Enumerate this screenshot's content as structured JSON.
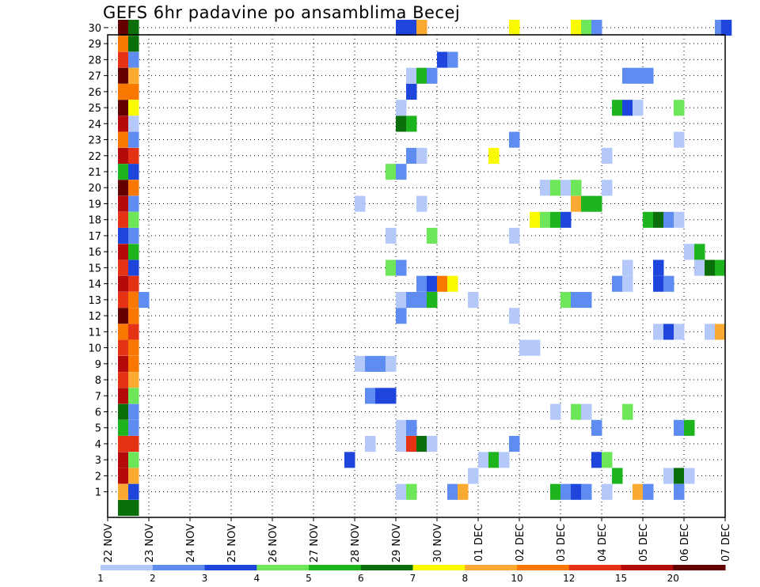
{
  "chart_data": {
    "type": "heatmap",
    "title": "GEFS 6hr padavine po ansamblima Becej",
    "x_tick_labels": [
      "22 NOV",
      "23 NOV",
      "24 NOV",
      "25 NOV",
      "26 NOV",
      "27 NOV",
      "28 NOV",
      "29 NOV",
      "30 NOV",
      "01 DEC",
      "02 DEC",
      "03 DEC",
      "04 DEC",
      "05 DEC",
      "06 DEC",
      "07 DEC"
    ],
    "y_tick_labels": [
      "1",
      "2",
      "3",
      "4",
      "5",
      "6",
      "7",
      "8",
      "9",
      "10",
      "11",
      "12",
      "13",
      "14",
      "15",
      "16",
      "17",
      "18",
      "19",
      "20",
      "21",
      "22",
      "23",
      "24",
      "25",
      "26",
      "27",
      "28",
      "29",
      "30"
    ],
    "x_range_days": [
      0,
      15
    ],
    "y_range": [
      0,
      30
    ],
    "grid": "dotted",
    "colorbar": {
      "labels": [
        "1",
        "2",
        "3",
        "4",
        "5",
        "6",
        "7",
        "8",
        "10",
        "12",
        "15",
        "20"
      ],
      "colors": [
        "#b4c8fa",
        "#5f8cf0",
        "#1e46dc",
        "#6ee65a",
        "#1eb41e",
        "#0a6e0a",
        "#fafa00",
        "#faaa32",
        "#fa7800",
        "#e63214",
        "#b40a0a",
        "#640000"
      ]
    },
    "cells_day_member_class": [
      [
        0.25,
        30,
        11
      ],
      [
        0.25,
        29,
        8
      ],
      [
        0.25,
        28,
        9
      ],
      [
        0.25,
        27,
        11
      ],
      [
        0.25,
        26,
        8
      ],
      [
        0.25,
        25,
        11
      ],
      [
        0.25,
        24,
        10
      ],
      [
        0.25,
        23,
        8
      ],
      [
        0.25,
        22,
        10
      ],
      [
        0.25,
        21,
        4
      ],
      [
        0.25,
        20,
        11
      ],
      [
        0.25,
        19,
        10
      ],
      [
        0.25,
        18,
        9
      ],
      [
        0.25,
        17,
        2
      ],
      [
        0.25,
        16,
        10
      ],
      [
        0.25,
        15,
        9
      ],
      [
        0.25,
        14,
        10
      ],
      [
        0.25,
        13,
        9
      ],
      [
        0.25,
        12,
        11
      ],
      [
        0.25,
        11,
        8
      ],
      [
        0.25,
        10,
        9
      ],
      [
        0.25,
        9,
        10
      ],
      [
        0.25,
        8,
        9
      ],
      [
        0.25,
        7,
        10
      ],
      [
        0.25,
        6,
        5
      ],
      [
        0.25,
        5,
        4
      ],
      [
        0.25,
        4,
        9
      ],
      [
        0.25,
        3,
        10
      ],
      [
        0.25,
        2,
        10
      ],
      [
        0.25,
        1,
        7
      ],
      [
        0.25,
        0,
        5
      ],
      [
        0.5,
        30,
        5
      ],
      [
        0.5,
        29,
        5
      ],
      [
        0.5,
        28,
        1
      ],
      [
        0.5,
        27,
        7
      ],
      [
        0.5,
        26,
        8
      ],
      [
        0.5,
        25,
        6
      ],
      [
        0.5,
        24,
        0
      ],
      [
        0.5,
        23,
        1
      ],
      [
        0.5,
        22,
        9
      ],
      [
        0.5,
        21,
        2
      ],
      [
        0.5,
        20,
        8
      ],
      [
        0.5,
        19,
        1
      ],
      [
        0.5,
        18,
        3
      ],
      [
        0.5,
        17,
        1
      ],
      [
        0.5,
        16,
        4
      ],
      [
        0.5,
        15,
        2
      ],
      [
        0.5,
        14,
        9
      ],
      [
        0.5,
        13,
        8
      ],
      [
        0.5,
        12,
        8
      ],
      [
        0.5,
        11,
        9
      ],
      [
        0.5,
        10,
        8
      ],
      [
        0.5,
        9,
        8
      ],
      [
        0.5,
        8,
        7
      ],
      [
        0.5,
        7,
        3
      ],
      [
        0.5,
        6,
        1
      ],
      [
        0.5,
        5,
        1
      ],
      [
        0.5,
        4,
        9
      ],
      [
        0.5,
        3,
        3
      ],
      [
        0.5,
        2,
        7
      ],
      [
        0.5,
        1,
        2
      ],
      [
        0.5,
        0,
        5
      ],
      [
        0.75,
        13,
        1
      ],
      [
        7.0,
        30,
        2
      ],
      [
        7.25,
        30,
        2
      ],
      [
        7.5,
        30,
        7
      ],
      [
        9.75,
        30,
        6
      ],
      [
        11.25,
        30,
        6
      ],
      [
        11.5,
        30,
        3
      ],
      [
        11.75,
        30,
        1
      ],
      [
        14.75,
        30,
        1
      ],
      [
        14.9,
        30,
        2
      ],
      [
        8.0,
        28,
        2
      ],
      [
        8.25,
        28,
        1
      ],
      [
        7.25,
        27,
        0
      ],
      [
        7.5,
        27,
        4
      ],
      [
        7.75,
        27,
        1
      ],
      [
        12.5,
        27,
        1
      ],
      [
        12.75,
        27,
        1
      ],
      [
        13.0,
        27,
        1
      ],
      [
        7.25,
        26,
        2
      ],
      [
        7.0,
        25,
        0
      ],
      [
        12.25,
        25,
        4
      ],
      [
        12.5,
        25,
        2
      ],
      [
        12.75,
        25,
        0
      ],
      [
        13.75,
        25,
        3
      ],
      [
        7.0,
        24,
        5
      ],
      [
        7.25,
        24,
        4
      ],
      [
        9.75,
        23,
        1
      ],
      [
        13.75,
        23,
        0
      ],
      [
        7.25,
        22,
        1
      ],
      [
        7.5,
        22,
        0
      ],
      [
        9.25,
        22,
        6
      ],
      [
        12.0,
        22,
        0
      ],
      [
        6.75,
        21,
        3
      ],
      [
        7.0,
        21,
        1
      ],
      [
        10.5,
        20,
        0
      ],
      [
        10.75,
        20,
        3
      ],
      [
        11.0,
        20,
        0
      ],
      [
        11.25,
        20,
        3
      ],
      [
        12.0,
        20,
        0
      ],
      [
        6.0,
        19,
        0
      ],
      [
        7.5,
        19,
        0
      ],
      [
        11.25,
        19,
        7
      ],
      [
        11.5,
        19,
        4
      ],
      [
        11.75,
        19,
        4
      ],
      [
        10.25,
        18,
        6
      ],
      [
        10.5,
        18,
        3
      ],
      [
        10.75,
        18,
        4
      ],
      [
        11.0,
        18,
        2
      ],
      [
        13.0,
        18,
        4
      ],
      [
        13.25,
        18,
        5
      ],
      [
        13.5,
        18,
        1
      ],
      [
        13.75,
        18,
        0
      ],
      [
        6.75,
        17,
        0
      ],
      [
        7.75,
        17,
        3
      ],
      [
        9.75,
        17,
        0
      ],
      [
        14.0,
        16,
        0
      ],
      [
        14.25,
        16,
        4
      ],
      [
        6.75,
        15,
        3
      ],
      [
        7.0,
        15,
        1
      ],
      [
        12.5,
        15,
        0
      ],
      [
        13.25,
        15,
        2
      ],
      [
        14.25,
        15,
        0
      ],
      [
        14.5,
        15,
        5
      ],
      [
        14.75,
        15,
        4
      ],
      [
        7.5,
        14,
        1
      ],
      [
        7.75,
        14,
        2
      ],
      [
        8.0,
        14,
        8
      ],
      [
        8.25,
        14,
        6
      ],
      [
        12.25,
        14,
        1
      ],
      [
        12.5,
        14,
        0
      ],
      [
        13.25,
        14,
        2
      ],
      [
        13.5,
        14,
        1
      ],
      [
        7.0,
        13,
        0
      ],
      [
        7.25,
        13,
        1
      ],
      [
        7.5,
        13,
        1
      ],
      [
        7.75,
        13,
        4
      ],
      [
        8.75,
        13,
        0
      ],
      [
        11.0,
        13,
        3
      ],
      [
        11.25,
        13,
        1
      ],
      [
        11.5,
        13,
        1
      ],
      [
        7.0,
        12,
        1
      ],
      [
        9.75,
        12,
        0
      ],
      [
        13.25,
        11,
        0
      ],
      [
        13.5,
        11,
        2
      ],
      [
        13.75,
        11,
        0
      ],
      [
        14.5,
        11,
        0
      ],
      [
        14.75,
        11,
        7
      ],
      [
        10.0,
        10,
        0
      ],
      [
        10.25,
        10,
        0
      ],
      [
        6.0,
        9,
        0
      ],
      [
        6.25,
        9,
        1
      ],
      [
        6.5,
        9,
        1
      ],
      [
        6.75,
        9,
        0
      ],
      [
        6.25,
        7,
        1
      ],
      [
        6.5,
        7,
        2
      ],
      [
        6.75,
        7,
        2
      ],
      [
        10.75,
        6,
        0
      ],
      [
        11.25,
        6,
        3
      ],
      [
        11.5,
        6,
        0
      ],
      [
        12.5,
        6,
        3
      ],
      [
        7.0,
        5,
        0
      ],
      [
        7.25,
        5,
        1
      ],
      [
        11.75,
        5,
        1
      ],
      [
        13.75,
        5,
        1
      ],
      [
        14.0,
        5,
        4
      ],
      [
        6.25,
        4,
        0
      ],
      [
        7.0,
        4,
        0
      ],
      [
        7.25,
        4,
        9
      ],
      [
        7.5,
        4,
        5
      ],
      [
        7.75,
        4,
        0
      ],
      [
        9.75,
        4,
        1
      ],
      [
        5.75,
        3,
        2
      ],
      [
        9.0,
        3,
        0
      ],
      [
        9.25,
        3,
        4
      ],
      [
        9.5,
        3,
        0
      ],
      [
        11.75,
        3,
        2
      ],
      [
        12.0,
        3,
        3
      ],
      [
        8.75,
        2,
        0
      ],
      [
        12.25,
        2,
        4
      ],
      [
        13.5,
        2,
        0
      ],
      [
        13.75,
        2,
        5
      ],
      [
        14.0,
        2,
        0
      ],
      [
        7.0,
        1,
        0
      ],
      [
        7.25,
        1,
        3
      ],
      [
        8.25,
        1,
        1
      ],
      [
        8.5,
        1,
        7
      ],
      [
        10.75,
        1,
        4
      ],
      [
        11.0,
        1,
        1
      ],
      [
        11.25,
        1,
        2
      ],
      [
        11.5,
        1,
        1
      ],
      [
        12.0,
        1,
        0
      ],
      [
        12.75,
        1,
        7
      ],
      [
        13.0,
        1,
        1
      ],
      [
        13.75,
        1,
        1
      ]
    ]
  }
}
